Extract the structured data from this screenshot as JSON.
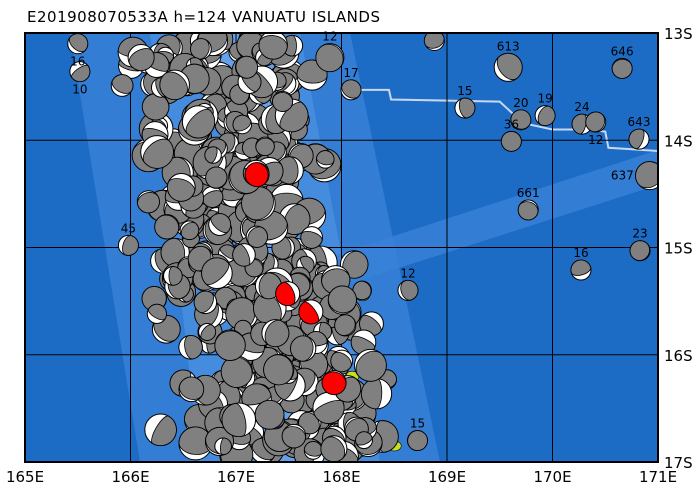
{
  "title": "E201908070533A h=124 VANUATU ISLANDS",
  "map": {
    "lon_range": [
      165,
      171
    ],
    "lat_range": [
      -17,
      -13
    ],
    "lon_ticks": [
      "165E",
      "166E",
      "167E",
      "168E",
      "169E",
      "170E",
      "171E"
    ],
    "lat_ticks": [
      "13S",
      "14S",
      "15S",
      "16S",
      "17S"
    ],
    "colors": {
      "ocean": "#1c6cc6",
      "shallow": "#4a90e0",
      "land": "#c8e020",
      "compression": "#808080",
      "main_event": "#ff0000",
      "plate_boundary": "#c8d8f0"
    },
    "main_events": [
      {
        "lon": 167.2,
        "lat": -14.32
      },
      {
        "lon": 167.49,
        "lat": -15.43
      },
      {
        "lon": 167.71,
        "lat": -15.6
      },
      {
        "lon": 167.93,
        "lat": -16.26
      }
    ],
    "labeled_events": [
      {
        "lon": 169.58,
        "lat": -13.32,
        "label": "613"
      },
      {
        "lon": 170.66,
        "lat": -13.33,
        "label": "646"
      },
      {
        "lon": 169.17,
        "lat": -13.7,
        "label": "15"
      },
      {
        "lon": 169.7,
        "lat": -13.81,
        "label": "20"
      },
      {
        "lon": 169.93,
        "lat": -13.77,
        "label": "19"
      },
      {
        "lon": 169.61,
        "lat": -14.01,
        "label": "36"
      },
      {
        "lon": 170.82,
        "lat": -13.99,
        "label": "643"
      },
      {
        "lon": 170.92,
        "lat": -14.33,
        "label": "637"
      },
      {
        "lon": 169.77,
        "lat": -14.65,
        "label": "661"
      },
      {
        "lon": 170.83,
        "lat": -15.03,
        "label": "23"
      },
      {
        "lon": 170.27,
        "lat": -15.21,
        "label": "16"
      },
      {
        "lon": 168.63,
        "lat": -15.4,
        "label": "12"
      },
      {
        "lon": 168.72,
        "lat": -16.8,
        "label": "15"
      },
      {
        "lon": 168.09,
        "lat": -13.53,
        "label": "17"
      },
      {
        "lon": 167.89,
        "lat": -13.23,
        "label": "12"
      },
      {
        "lon": 165.5,
        "lat": -13.1,
        "label": "16"
      },
      {
        "lon": 165.52,
        "lat": -13.36,
        "label": "10"
      },
      {
        "lon": 165.98,
        "lat": -14.98,
        "label": "45"
      },
      {
        "lon": 170.28,
        "lat": -13.85,
        "label": "24"
      },
      {
        "lon": 170.41,
        "lat": -13.83,
        "label": "12"
      },
      {
        "lon": 168.88,
        "lat": -13.07,
        "label": ""
      }
    ]
  }
}
